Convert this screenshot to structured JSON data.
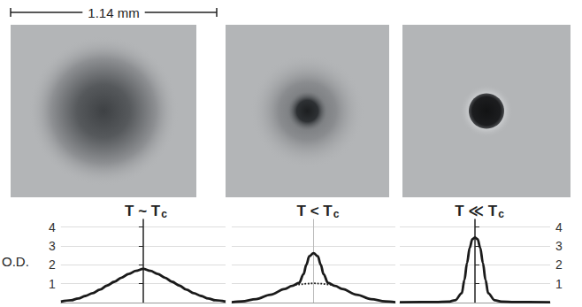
{
  "scale_bar_label": "1.14 mm",
  "chart_data": [
    {
      "type": "line",
      "title": "T ~ Tc",
      "y_label": "O.D.",
      "xlim": [
        -0.57,
        0.57
      ],
      "ylim": [
        0,
        4.4
      ],
      "yticks": [
        1,
        2,
        3,
        4
      ],
      "grid": true,
      "tick_labels": "y",
      "series": [
        {
          "color": "#1a1a1a",
          "line_style": "solid",
          "x": [
            -0.57,
            -0.5,
            -0.45,
            -0.4,
            -0.35,
            -0.3,
            -0.25,
            -0.2,
            -0.15,
            -0.1,
            -0.05,
            0,
            0.05,
            0.1,
            0.15,
            0.2,
            0.25,
            0.3,
            0.35,
            0.4,
            0.45,
            0.5,
            0.57
          ],
          "values": [
            0.05,
            0.12,
            0.22,
            0.35,
            0.5,
            0.68,
            0.9,
            1.1,
            1.32,
            1.52,
            1.68,
            1.78,
            1.68,
            1.52,
            1.32,
            1.1,
            0.9,
            0.68,
            0.5,
            0.35,
            0.22,
            0.12,
            0.05
          ]
        }
      ]
    },
    {
      "type": "line",
      "title": "T < Tc",
      "xlim": [
        -0.57,
        0.57
      ],
      "ylim": [
        0,
        4.4
      ],
      "yticks": [
        1,
        2,
        3,
        4
      ],
      "grid": true,
      "tick_labels": false,
      "series": [
        {
          "color": "#1a1a1a",
          "line_style": "solid",
          "x": [
            -0.57,
            -0.5,
            -0.4,
            -0.3,
            -0.2,
            -0.15,
            -0.1,
            -0.07,
            -0.05,
            -0.03,
            0,
            0.03,
            0.05,
            0.07,
            0.1,
            0.15,
            0.2,
            0.3,
            0.4,
            0.5,
            0.57
          ],
          "values": [
            0.02,
            0.06,
            0.18,
            0.42,
            0.72,
            0.88,
            1.05,
            1.5,
            2.0,
            2.45,
            2.62,
            2.45,
            2.0,
            1.5,
            1.05,
            0.88,
            0.72,
            0.42,
            0.18,
            0.06,
            0.02
          ]
        },
        {
          "color": "#1a1a1a",
          "line_style": "dotted",
          "x": [
            -0.15,
            -0.1,
            -0.05,
            0,
            0.05,
            0.1,
            0.15
          ],
          "values": [
            0.88,
            0.96,
            1.0,
            1.02,
            1.0,
            0.96,
            0.88
          ]
        }
      ]
    },
    {
      "type": "line",
      "title": "T ≪ Tc",
      "xlim": [
        -0.57,
        0.57
      ],
      "ylim": [
        0,
        4.4
      ],
      "yticks": [
        1,
        2,
        3,
        4
      ],
      "grid": true,
      "tick_labels": "y",
      "series": [
        {
          "color": "#1a1a1a",
          "line_style": "solid",
          "x": [
            -0.57,
            -0.3,
            -0.2,
            -0.15,
            -0.1,
            -0.08,
            -0.06,
            -0.04,
            -0.02,
            0,
            0.02,
            0.04,
            0.06,
            0.08,
            0.1,
            0.15,
            0.2,
            0.3,
            0.57
          ],
          "values": [
            0.02,
            0.03,
            0.05,
            0.12,
            0.5,
            1.2,
            2.1,
            2.9,
            3.35,
            3.45,
            3.35,
            2.9,
            2.1,
            1.2,
            0.5,
            0.12,
            0.05,
            0.03,
            0.02
          ]
        }
      ]
    }
  ]
}
